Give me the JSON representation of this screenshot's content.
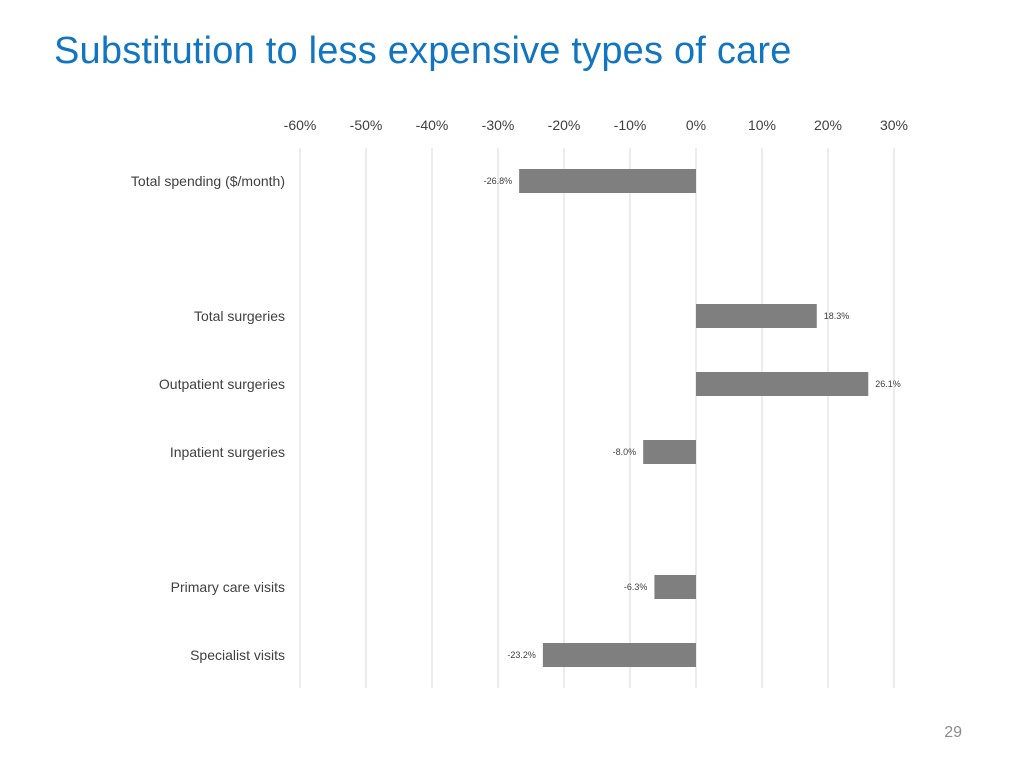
{
  "slide": {
    "title": "Substitution to less expensive types of care",
    "page_number": "29"
  },
  "colors": {
    "title": "#1175c2",
    "bar": "#7f7f7f",
    "gridline": "#d9d9d9"
  },
  "chart_data": {
    "type": "bar",
    "orientation": "horizontal",
    "title": "",
    "xlabel": "",
    "ylabel": "",
    "xlim": [
      -60,
      30
    ],
    "ticks": [
      -60,
      -50,
      -40,
      -30,
      -20,
      -10,
      0,
      10,
      20,
      30
    ],
    "tick_labels": [
      "-60%",
      "-50%",
      "-40%",
      "-30%",
      "-20%",
      "-10%",
      "0%",
      "10%",
      "20%",
      "30%"
    ],
    "axis_position": "top",
    "grid": true,
    "legend": "none",
    "categories": [
      "Total spending ($/month)",
      "",
      "Total surgeries",
      "Outpatient surgeries",
      "Inpatient surgeries",
      "",
      "Primary care visits",
      "Specialist visits"
    ],
    "values": [
      -26.8,
      null,
      18.3,
      26.1,
      -8.0,
      null,
      -6.3,
      -23.2
    ],
    "data_labels": [
      "-26.8%",
      "",
      "18.3%",
      "26.1%",
      "-8.0%",
      "",
      "-6.3%",
      "-23.2%"
    ]
  }
}
